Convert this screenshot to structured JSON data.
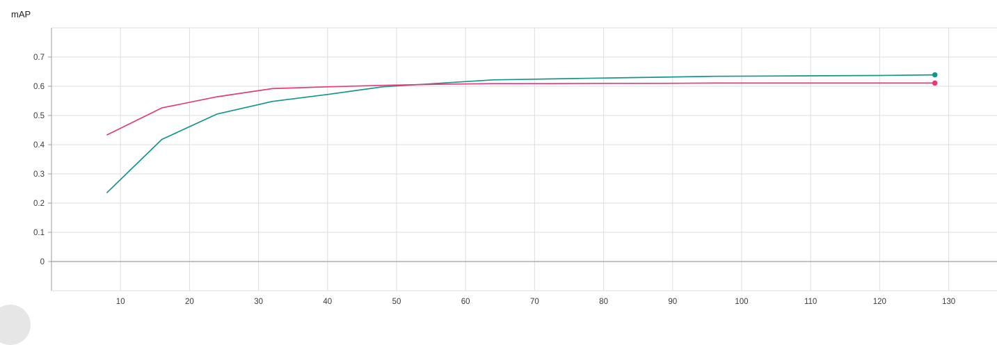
{
  "chart_data": {
    "type": "line",
    "title": "mAP",
    "xlabel": "",
    "ylabel": "",
    "xlim": [
      0,
      137
    ],
    "ylim": [
      -0.1,
      0.8
    ],
    "xticks": [
      10,
      20,
      30,
      40,
      50,
      60,
      70,
      80,
      90,
      100,
      110,
      120,
      130
    ],
    "yticks": [
      0,
      0.1,
      0.2,
      0.3,
      0.4,
      0.5,
      0.6,
      0.7
    ],
    "grid": true,
    "series": [
      {
        "color": "#12968c",
        "x": [
          8,
          16,
          24,
          32,
          40,
          48,
          56,
          64,
          72,
          80,
          88,
          96,
          104,
          112,
          120,
          128
        ],
        "values": [
          0.235,
          0.418,
          0.505,
          0.548,
          0.572,
          0.598,
          0.61,
          0.622,
          0.625,
          0.628,
          0.631,
          0.634,
          0.635,
          0.636,
          0.637,
          0.639
        ]
      },
      {
        "color": "#e6397a",
        "x": [
          8,
          16,
          24,
          32,
          40,
          48,
          56,
          64,
          72,
          80,
          88,
          96,
          104,
          112,
          120,
          128
        ],
        "values": [
          0.433,
          0.526,
          0.564,
          0.592,
          0.598,
          0.603,
          0.607,
          0.609,
          0.609,
          0.61,
          0.61,
          0.611,
          0.611,
          0.611,
          0.611,
          0.611
        ]
      }
    ]
  }
}
